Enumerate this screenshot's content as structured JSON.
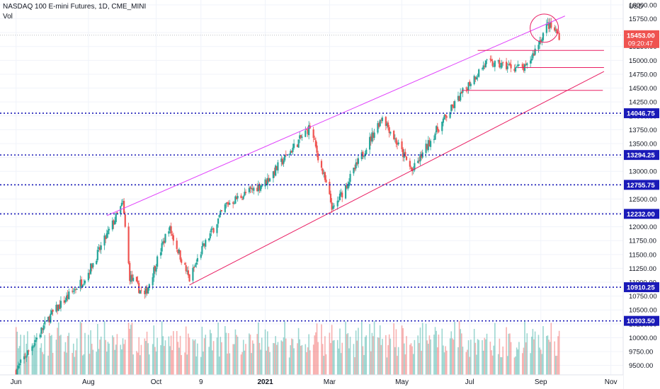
{
  "header": {
    "symbol_line": "NASDAQ 100 E-mini Futures, 1D, CME_MINI",
    "volume_label": "Vol"
  },
  "price_box": {
    "price": "15453.00",
    "countdown": "09:20:47"
  },
  "colors": {
    "up": "#26a69a",
    "down": "#ef5350",
    "channel_upper": "#e040fb",
    "channel_lower": "#e91e63",
    "level_line": "#1a1ab8",
    "level_box": "#1a1ab8",
    "price_box": "#ef5350",
    "horizontal_rays": "#e91e63",
    "circle": "#e91e63"
  },
  "chart_data": {
    "type": "candlestick",
    "currency": "USD",
    "y_axis_ticks": [
      "16000.00",
      "15750.00",
      "15500.00",
      "15250.00",
      "15000.00",
      "14750.00",
      "14500.00",
      "14250.00",
      "14000.00",
      "13750.00",
      "13500.00",
      "13250.00",
      "13000.00",
      "12750.00",
      "12500.00",
      "12250.00",
      "12000.00",
      "11750.00",
      "11500.00",
      "11250.00",
      "11000.00",
      "10750.00",
      "10500.00",
      "10250.00",
      "10000.00",
      "9750.00",
      "9500.00"
    ],
    "x_axis_ticks": [
      "Jun",
      "Aug",
      "Oct",
      "9",
      "2021",
      "Mar",
      "May",
      "Jul",
      "Sep",
      "Nov"
    ],
    "ylim": [
      9330,
      16050
    ],
    "last_price": 15453.0,
    "horizontal_levels": [
      {
        "label": "14046.75",
        "value": 14046.75
      },
      {
        "label": "13294.25",
        "value": 13294.25
      },
      {
        "label": "12755.75",
        "value": 12755.75
      },
      {
        "label": "12232.00",
        "value": 12232.0
      },
      {
        "label": "10910.25",
        "value": 10910.25
      },
      {
        "label": "10303.50",
        "value": 10303.5
      }
    ],
    "price_path_anchors": [
      {
        "date": "2020-06-01",
        "close": 9400
      },
      {
        "date": "2020-07-01",
        "close": 10400
      },
      {
        "date": "2020-08-01",
        "close": 11100
      },
      {
        "date": "2020-09-02",
        "close": 12420
      },
      {
        "date": "2020-09-08",
        "close": 11100
      },
      {
        "date": "2020-09-21",
        "close": 10750
      },
      {
        "date": "2020-10-12",
        "close": 12000
      },
      {
        "date": "2020-10-30",
        "close": 11050
      },
      {
        "date": "2020-11-09",
        "close": 11550
      },
      {
        "date": "2020-12-01",
        "close": 12400
      },
      {
        "date": "2021-01-04",
        "close": 12800
      },
      {
        "date": "2021-02-12",
        "close": 13800
      },
      {
        "date": "2021-03-04",
        "close": 12300
      },
      {
        "date": "2021-03-22",
        "close": 13000
      },
      {
        "date": "2021-04-16",
        "close": 14000
      },
      {
        "date": "2021-05-12",
        "close": 13000
      },
      {
        "date": "2021-06-01",
        "close": 13700
      },
      {
        "date": "2021-07-01",
        "close": 14600
      },
      {
        "date": "2021-07-15",
        "close": 14950
      },
      {
        "date": "2021-08-19",
        "close": 14850
      },
      {
        "date": "2021-09-07",
        "close": 15650
      },
      {
        "date": "2021-09-17",
        "close": 15453
      }
    ],
    "channel": {
      "upper": {
        "from": {
          "date": "2020-08-19",
          "price": 12200
        },
        "to": {
          "date": "2021-09-22",
          "price": 15800
        }
      },
      "lower": {
        "from": {
          "date": "2020-10-30",
          "price": 10950
        },
        "to": {
          "date": "2021-10-26",
          "price": 14800
        }
      }
    },
    "horizontal_rays": [
      {
        "from_date": "2021-07-08",
        "to_date": "2021-10-26",
        "price": 15180
      },
      {
        "from_date": "2021-08-12",
        "to_date": "2021-10-26",
        "price": 14870
      },
      {
        "from_date": "2021-06-24",
        "to_date": "2021-10-25",
        "price": 14460
      }
    ],
    "highlight_circle": {
      "date": "2021-09-04",
      "price": 15580
    },
    "volume_series": "bars at bottom panel, colored by candle direction"
  }
}
